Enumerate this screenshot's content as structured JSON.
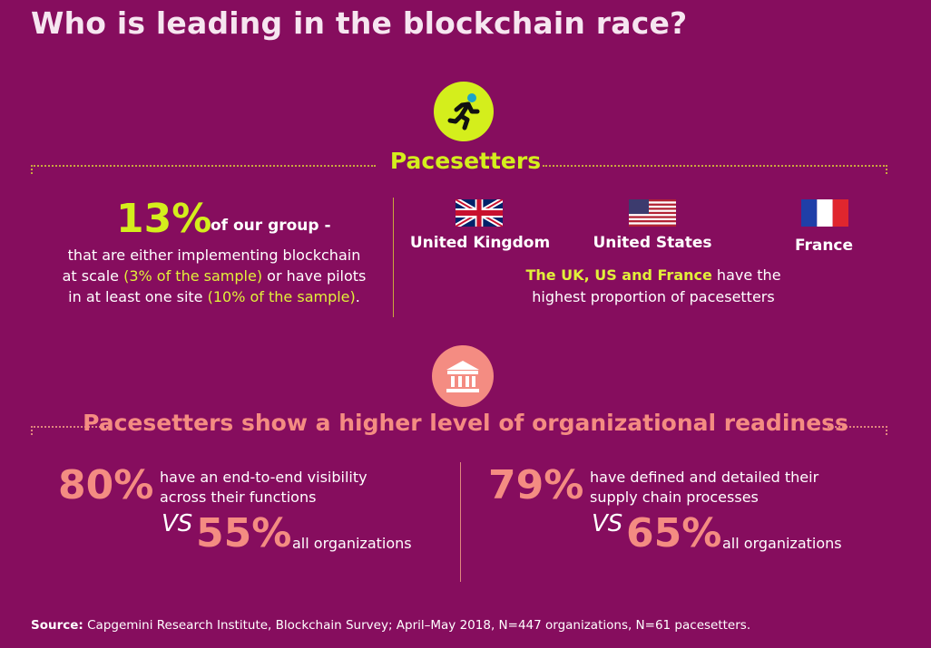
{
  "title": "Who is leading in the blockchain race?",
  "pacesetters": {
    "heading": "Pacesetters",
    "icon": "runner-icon",
    "percent": "13%",
    "percent_suffix": "of our group  -",
    "desc_line1": "that are either implementing blockchain",
    "desc_line2a": "at scale ",
    "desc_hl1": "(3% of the sample)",
    "desc_line2b": " or have pilots",
    "desc_line3a": "in at least one site ",
    "desc_hl2": "(10% of the sample)",
    "desc_line3b": ".",
    "countries": [
      {
        "name": "United Kingdom",
        "flag": "uk-flag-icon"
      },
      {
        "name": "United States",
        "flag": "us-flag-icon"
      },
      {
        "name": "France",
        "flag": "france-flag-icon"
      }
    ],
    "note_hl": "The UK, US and France",
    "note_rest": " have the",
    "note_line2": "highest proportion of pacesetters"
  },
  "readiness": {
    "heading": "Pacesetters show a higher level of organizational readiness",
    "icon": "bank-icon",
    "stats": [
      {
        "value": "80%",
        "text_line1": "have an end-to-end visibility",
        "text_line2": "across their functions",
        "vs": "VS",
        "compare_value": "55%",
        "compare_label": "all organizations"
      },
      {
        "value": "79%",
        "text_line1": "have defined and detailed their",
        "text_line2": "supply chain processes",
        "vs": "VS",
        "compare_value": "65%",
        "compare_label": "all organizations"
      }
    ]
  },
  "source": {
    "label": "Source:",
    "text": " Capgemini Research Institute, Blockchain Survey; April–May 2018, N=447 organizations, N=61 pacesetters."
  },
  "colors": {
    "background": "#860d5e",
    "accent_green": "#d4ee1c",
    "accent_coral": "#f48c82"
  }
}
